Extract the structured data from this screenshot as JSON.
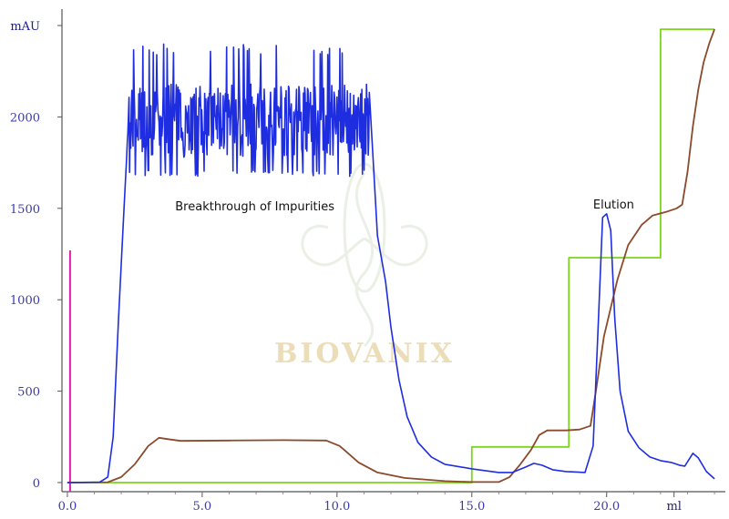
{
  "chart_data": {
    "type": "line",
    "y_unit": "mAU",
    "x_unit": "ml",
    "xlim": [
      -0.2,
      24.2
    ],
    "ylim": [
      -50,
      2550
    ],
    "x_ticks": [
      {
        "value": 0,
        "label": "0.0"
      },
      {
        "value": 5,
        "label": "5.0"
      },
      {
        "value": 10,
        "label": "10.0"
      },
      {
        "value": 15,
        "label": "15.0"
      },
      {
        "value": 20,
        "label": "20.0"
      },
      {
        "value": 22.5,
        "label": "ml"
      }
    ],
    "y_ticks": [
      {
        "value": 0,
        "label": "0"
      },
      {
        "value": 500,
        "label": "500"
      },
      {
        "value": 1000,
        "label": "1000"
      },
      {
        "value": 1500,
        "label": "1500"
      },
      {
        "value": 2000,
        "label": "2000"
      },
      {
        "value": 2500,
        "label": "mAU"
      }
    ],
    "annotations": [
      {
        "text": "Breakthrough of Impurities",
        "x": 4.0,
        "y": 1490
      },
      {
        "text": "Elution",
        "x": 19.5,
        "y": 1500
      }
    ],
    "watermark": "BIOVANIX",
    "injection_marker": {
      "x": 0.1,
      "y_top": 1270,
      "color": "#e01fb0"
    },
    "series": [
      {
        "color": "#1f2de0",
        "points": [
          [
            0,
            0
          ],
          [
            1.2,
            2
          ],
          [
            1.5,
            30
          ],
          [
            1.7,
            250
          ],
          [
            1.9,
            900
          ],
          [
            2.1,
            1500
          ],
          [
            2.3,
            1650
          ],
          [
            2.5,
            1700
          ],
          [
            2.8,
            1740
          ],
          [
            3.3,
            1760
          ],
          [
            5,
            1800
          ],
          [
            7,
            1820
          ],
          [
            9,
            1800
          ],
          [
            10.5,
            1770
          ],
          [
            11.0,
            1700
          ],
          [
            11.2,
            1560
          ],
          [
            11.5,
            1350
          ],
          [
            11.8,
            1100
          ],
          [
            12.0,
            850
          ],
          [
            12.3,
            560
          ],
          [
            12.6,
            360
          ],
          [
            13.0,
            220
          ],
          [
            13.5,
            140
          ],
          [
            14.0,
            100
          ],
          [
            15,
            75
          ],
          [
            16,
            55
          ],
          [
            16.5,
            55
          ],
          [
            17.0,
            85
          ],
          [
            17.3,
            105
          ],
          [
            17.6,
            95
          ],
          [
            18.0,
            70
          ],
          [
            18.5,
            60
          ],
          [
            19.2,
            55
          ],
          [
            19.5,
            200
          ],
          [
            19.7,
            900
          ],
          [
            19.85,
            1450
          ],
          [
            20.0,
            1470
          ],
          [
            20.15,
            1380
          ],
          [
            20.3,
            900
          ],
          [
            20.5,
            500
          ],
          [
            20.8,
            280
          ],
          [
            21.2,
            190
          ],
          [
            21.6,
            140
          ],
          [
            22.0,
            120
          ],
          [
            22.4,
            110
          ],
          [
            22.7,
            95
          ],
          [
            22.9,
            90
          ],
          [
            23.2,
            160
          ],
          [
            23.4,
            135
          ],
          [
            23.7,
            60
          ],
          [
            24.0,
            20
          ]
        ],
        "noise": {
          "x_from": 2.2,
          "x_to": 11.2,
          "band": [
            1670,
            2400
          ]
        }
      },
      {
        "color": "#8b4a2b",
        "points": [
          [
            0,
            0
          ],
          [
            1.5,
            2
          ],
          [
            2.0,
            30
          ],
          [
            2.5,
            100
          ],
          [
            3.0,
            200
          ],
          [
            3.4,
            245
          ],
          [
            3.7,
            238
          ],
          [
            4.2,
            228
          ],
          [
            6,
            230
          ],
          [
            8,
            232
          ],
          [
            9.6,
            230
          ],
          [
            10.1,
            200
          ],
          [
            10.8,
            110
          ],
          [
            11.5,
            55
          ],
          [
            12.5,
            25
          ],
          [
            14,
            8
          ],
          [
            15,
            3
          ],
          [
            16.0,
            3
          ],
          [
            16.4,
            30
          ],
          [
            16.8,
            100
          ],
          [
            17.2,
            180
          ],
          [
            17.5,
            260
          ],
          [
            17.8,
            285
          ],
          [
            18.5,
            285
          ],
          [
            19.0,
            290
          ],
          [
            19.4,
            310
          ],
          [
            19.6,
            500
          ],
          [
            19.9,
            800
          ],
          [
            20.4,
            1110
          ],
          [
            20.8,
            1300
          ],
          [
            21.3,
            1410
          ],
          [
            21.7,
            1460
          ],
          [
            22.2,
            1480
          ],
          [
            22.6,
            1500
          ],
          [
            22.8,
            1520
          ],
          [
            23.0,
            1700
          ],
          [
            23.2,
            1950
          ],
          [
            23.4,
            2150
          ],
          [
            23.6,
            2300
          ],
          [
            23.8,
            2400
          ],
          [
            24.0,
            2480
          ]
        ]
      },
      {
        "color": "#7fd321",
        "points": [
          [
            0,
            0
          ],
          [
            15.0,
            0
          ],
          [
            15.0,
            195
          ],
          [
            18.6,
            195
          ],
          [
            18.6,
            1230
          ],
          [
            22.0,
            1230
          ],
          [
            22.0,
            2480
          ],
          [
            24.0,
            2480
          ]
        ]
      }
    ]
  }
}
